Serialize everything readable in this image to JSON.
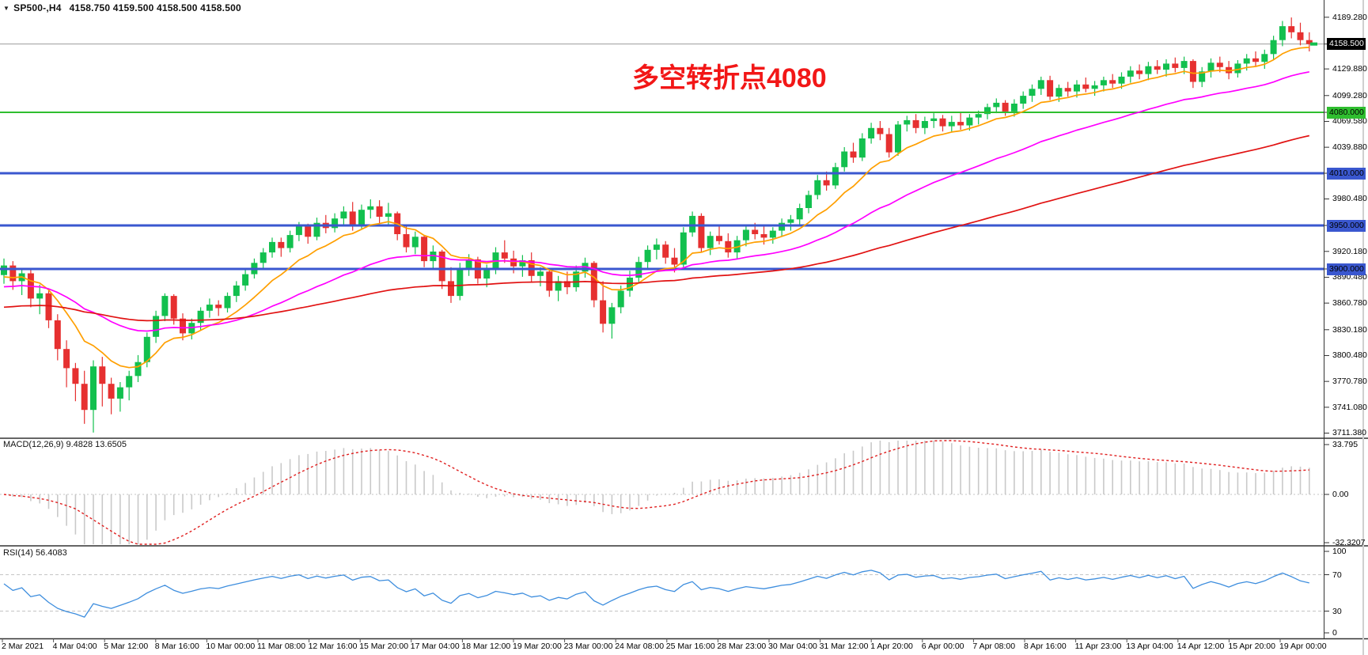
{
  "header": {
    "symbol": "SP500-,H4",
    "ohlc": "4158.750 4159.500 4158.500 4158.500"
  },
  "annotation": {
    "text": "多空转折点4080",
    "color": "#f21717"
  },
  "panels": {
    "macd": {
      "name": "MACD(12,26,9)",
      "values": "9.4828 13.6505"
    },
    "rsi": {
      "name": "RSI(14)",
      "values": "56.4083"
    }
  },
  "chart_data": {
    "type": "candlestick",
    "title": "SP500-,H4",
    "up_color": "#12c04e",
    "down_color": "#e63030",
    "current_price": {
      "price": 4158.5,
      "label": "4158.500",
      "line_color": "#9b9b9b"
    },
    "levels": [
      {
        "price": 4080.0,
        "label": "4080.000",
        "color": "#2fbe2f",
        "line_width": 2
      },
      {
        "price": 4010.0,
        "label": "4010.000",
        "color": "#3a57cf",
        "line_width": 3
      },
      {
        "price": 3950.0,
        "label": "3950.000",
        "color": "#3a57cf",
        "line_width": 3
      },
      {
        "price": 3900.0,
        "label": "3900.000",
        "color": "#3a57cf",
        "line_width": 3
      }
    ],
    "price_axis_ticks": [
      "4189.280",
      "4129.880",
      "4099.280",
      "4069.580",
      "4039.880",
      "3980.480",
      "3920.180",
      "3890.480",
      "3860.780",
      "3830.180",
      "3800.480",
      "3770.780",
      "3741.080",
      "3711.380"
    ],
    "time_labels": [
      "2 Mar 2021",
      "4 Mar 04:00",
      "5 Mar 12:00",
      "8 Mar 16:00",
      "10 Mar 00:00",
      "11 Mar 08:00",
      "12 Mar 16:00",
      "15 Mar 20:00",
      "17 Mar 04:00",
      "18 Mar 12:00",
      "19 Mar 20:00",
      "23 Mar 00:00",
      "24 Mar 08:00",
      "25 Mar 16:00",
      "28 Mar 23:00",
      "30 Mar 04:00",
      "31 Mar 12:00",
      "1 Apr 20:00",
      "6 Apr 00:00",
      "7 Apr 08:00",
      "8 Apr 16:00",
      "11 Apr 23:00",
      "13 Apr 04:00",
      "14 Apr 12:00",
      "15 Apr 20:00",
      "19 Apr 00:00"
    ],
    "overlays": [
      {
        "name": "ma-fast",
        "color": "#ff9f00",
        "period": 10,
        "seed": 3888
      },
      {
        "name": "ma-mid",
        "color": "#ff00ff",
        "period": 32,
        "seed": 3878
      },
      {
        "name": "ma-slow",
        "color": "#e11212",
        "period": 90,
        "seed": 3855
      }
    ],
    "macd": {
      "fast": 12,
      "slow": 26,
      "signal_period": 9,
      "hist_color": "#c9c9c9",
      "signal_color": "#e02020",
      "axis_labels": [
        "33.795",
        "0.00",
        "-32.3207"
      ]
    },
    "rsi": {
      "period": 14,
      "color": "#3e8ede",
      "levels": [
        70,
        30
      ],
      "axis_labels": [
        "100",
        "70",
        "30",
        "0"
      ]
    },
    "candles": [
      [
        3893,
        3912,
        3883,
        3904
      ],
      [
        3904,
        3909,
        3876,
        3886
      ],
      [
        3886,
        3899,
        3870,
        3895
      ],
      [
        3895,
        3901,
        3856,
        3866
      ],
      [
        3866,
        3882,
        3848,
        3872
      ],
      [
        3872,
        3875,
        3832,
        3841
      ],
      [
        3841,
        3848,
        3795,
        3808
      ],
      [
        3808,
        3818,
        3764,
        3786
      ],
      [
        3786,
        3792,
        3748,
        3768
      ],
      [
        3768,
        3783,
        3722,
        3738
      ],
      [
        3738,
        3795,
        3712,
        3788
      ],
      [
        3788,
        3799,
        3742,
        3768
      ],
      [
        3768,
        3775,
        3733,
        3751
      ],
      [
        3751,
        3770,
        3736,
        3764
      ],
      [
        3764,
        3783,
        3749,
        3777
      ],
      [
        3777,
        3801,
        3770,
        3793
      ],
      [
        3793,
        3827,
        3787,
        3822
      ],
      [
        3822,
        3852,
        3815,
        3846
      ],
      [
        3846,
        3872,
        3840,
        3869
      ],
      [
        3869,
        3871,
        3836,
        3843
      ],
      [
        3843,
        3849,
        3818,
        3826
      ],
      [
        3826,
        3843,
        3819,
        3838
      ],
      [
        3838,
        3856,
        3830,
        3852
      ],
      [
        3852,
        3866,
        3844,
        3859
      ],
      [
        3859,
        3864,
        3846,
        3855
      ],
      [
        3855,
        3873,
        3850,
        3869
      ],
      [
        3869,
        3886,
        3862,
        3881
      ],
      [
        3881,
        3899,
        3875,
        3894
      ],
      [
        3894,
        3912,
        3889,
        3907
      ],
      [
        3907,
        3924,
        3901,
        3919
      ],
      [
        3919,
        3936,
        3913,
        3931
      ],
      [
        3931,
        3936,
        3914,
        3924
      ],
      [
        3924,
        3944,
        3919,
        3939
      ],
      [
        3939,
        3954,
        3932,
        3949
      ],
      [
        3949,
        3952,
        3929,
        3937
      ],
      [
        3937,
        3959,
        3933,
        3953
      ],
      [
        3953,
        3962,
        3941,
        3947
      ],
      [
        3947,
        3964,
        3942,
        3958
      ],
      [
        3958,
        3972,
        3950,
        3966
      ],
      [
        3966,
        3977,
        3944,
        3951
      ],
      [
        3951,
        3974,
        3945,
        3968
      ],
      [
        3968,
        3980,
        3958,
        3972
      ],
      [
        3972,
        3979,
        3952,
        3960
      ],
      [
        3960,
        3976,
        3950,
        3964
      ],
      [
        3964,
        3966,
        3933,
        3940
      ],
      [
        3940,
        3949,
        3919,
        3925
      ],
      [
        3925,
        3943,
        3917,
        3937
      ],
      [
        3937,
        3939,
        3902,
        3909
      ],
      [
        3909,
        3927,
        3899,
        3920
      ],
      [
        3920,
        3922,
        3877,
        3886
      ],
      [
        3886,
        3902,
        3861,
        3869
      ],
      [
        3869,
        3907,
        3864,
        3901
      ],
      [
        3901,
        3917,
        3892,
        3911
      ],
      [
        3911,
        3914,
        3883,
        3889
      ],
      [
        3889,
        3905,
        3879,
        3899
      ],
      [
        3899,
        3925,
        3894,
        3919
      ],
      [
        3919,
        3933,
        3907,
        3912
      ],
      [
        3912,
        3921,
        3895,
        3903
      ],
      [
        3903,
        3916,
        3891,
        3910
      ],
      [
        3910,
        3919,
        3885,
        3892
      ],
      [
        3892,
        3902,
        3880,
        3897
      ],
      [
        3897,
        3899,
        3868,
        3875
      ],
      [
        3875,
        3892,
        3863,
        3886
      ],
      [
        3886,
        3897,
        3871,
        3879
      ],
      [
        3879,
        3904,
        3874,
        3897
      ],
      [
        3897,
        3913,
        3890,
        3907
      ],
      [
        3907,
        3909,
        3856,
        3864
      ],
      [
        3864,
        3886,
        3827,
        3837
      ],
      [
        3837,
        3861,
        3820,
        3856
      ],
      [
        3856,
        3881,
        3849,
        3875
      ],
      [
        3875,
        3898,
        3868,
        3890
      ],
      [
        3890,
        3914,
        3884,
        3908
      ],
      [
        3908,
        3927,
        3901,
        3922
      ],
      [
        3922,
        3935,
        3911,
        3928
      ],
      [
        3928,
        3932,
        3906,
        3913
      ],
      [
        3913,
        3924,
        3896,
        3905
      ],
      [
        3905,
        3948,
        3899,
        3942
      ],
      [
        3942,
        3966,
        3937,
        3961
      ],
      [
        3961,
        3964,
        3919,
        3924
      ],
      [
        3924,
        3943,
        3916,
        3938
      ],
      [
        3938,
        3949,
        3928,
        3932
      ],
      [
        3932,
        3941,
        3913,
        3919
      ],
      [
        3919,
        3938,
        3912,
        3933
      ],
      [
        3933,
        3950,
        3926,
        3945
      ],
      [
        3945,
        3953,
        3934,
        3940
      ],
      [
        3940,
        3951,
        3928,
        3936
      ],
      [
        3936,
        3948,
        3929,
        3944
      ],
      [
        3944,
        3958,
        3938,
        3953
      ],
      [
        3953,
        3962,
        3944,
        3957
      ],
      [
        3957,
        3975,
        3951,
        3970
      ],
      [
        3970,
        3990,
        3964,
        3985
      ],
      [
        3985,
        4008,
        3980,
        4002
      ],
      [
        4002,
        4012,
        3990,
        3996
      ],
      [
        3996,
        4022,
        3992,
        4017
      ],
      [
        4017,
        4040,
        4012,
        4035
      ],
      [
        4035,
        4045,
        4022,
        4028
      ],
      [
        4028,
        4056,
        4024,
        4050
      ],
      [
        4050,
        4068,
        4044,
        4062
      ],
      [
        4062,
        4070,
        4048,
        4055
      ],
      [
        4055,
        4062,
        4028,
        4034
      ],
      [
        4034,
        4070,
        4030,
        4066
      ],
      [
        4066,
        4076,
        4058,
        4071
      ],
      [
        4071,
        4078,
        4056,
        4062
      ],
      [
        4062,
        4075,
        4055,
        4070
      ],
      [
        4070,
        4079,
        4062,
        4073
      ],
      [
        4073,
        4077,
        4058,
        4064
      ],
      [
        4064,
        4076,
        4057,
        4069
      ],
      [
        4069,
        4080,
        4060,
        4065
      ],
      [
        4065,
        4078,
        4059,
        4074
      ],
      [
        4074,
        4082,
        4066,
        4078
      ],
      [
        4078,
        4090,
        4072,
        4086
      ],
      [
        4086,
        4096,
        4079,
        4091
      ],
      [
        4091,
        4094,
        4076,
        4081
      ],
      [
        4081,
        4095,
        4075,
        4090
      ],
      [
        4090,
        4104,
        4084,
        4099
      ],
      [
        4099,
        4112,
        4092,
        4107
      ],
      [
        4107,
        4121,
        4100,
        4117
      ],
      [
        4117,
        4122,
        4094,
        4098
      ],
      [
        4098,
        4112,
        4092,
        4108
      ],
      [
        4108,
        4115,
        4098,
        4104
      ],
      [
        4104,
        4117,
        4097,
        4112
      ],
      [
        4112,
        4120,
        4103,
        4107
      ],
      [
        4107,
        4116,
        4099,
        4111
      ],
      [
        4111,
        4121,
        4104,
        4117
      ],
      [
        4117,
        4124,
        4108,
        4113
      ],
      [
        4113,
        4126,
        4107,
        4121
      ],
      [
        4121,
        4133,
        4114,
        4128
      ],
      [
        4128,
        4135,
        4118,
        4124
      ],
      [
        4124,
        4138,
        4117,
        4133
      ],
      [
        4133,
        4140,
        4124,
        4129
      ],
      [
        4129,
        4141,
        4121,
        4136
      ],
      [
        4136,
        4143,
        4126,
        4131
      ],
      [
        4131,
        4144,
        4124,
        4139
      ],
      [
        4139,
        4141,
        4108,
        4115
      ],
      [
        4115,
        4132,
        4109,
        4127
      ],
      [
        4127,
        4142,
        4120,
        4137
      ],
      [
        4137,
        4144,
        4126,
        4132
      ],
      [
        4132,
        4139,
        4118,
        4125
      ],
      [
        4125,
        4140,
        4120,
        4136
      ],
      [
        4136,
        4147,
        4128,
        4142
      ],
      [
        4142,
        4150,
        4133,
        4138
      ],
      [
        4138,
        4152,
        4130,
        4147
      ],
      [
        4147,
        4168,
        4141,
        4163
      ],
      [
        4163,
        4185,
        4156,
        4179
      ],
      [
        4179,
        4189,
        4165,
        4172
      ],
      [
        4172,
        4183,
        4157,
        4163
      ],
      [
        4163,
        4172,
        4150,
        4158.5
      ]
    ]
  }
}
